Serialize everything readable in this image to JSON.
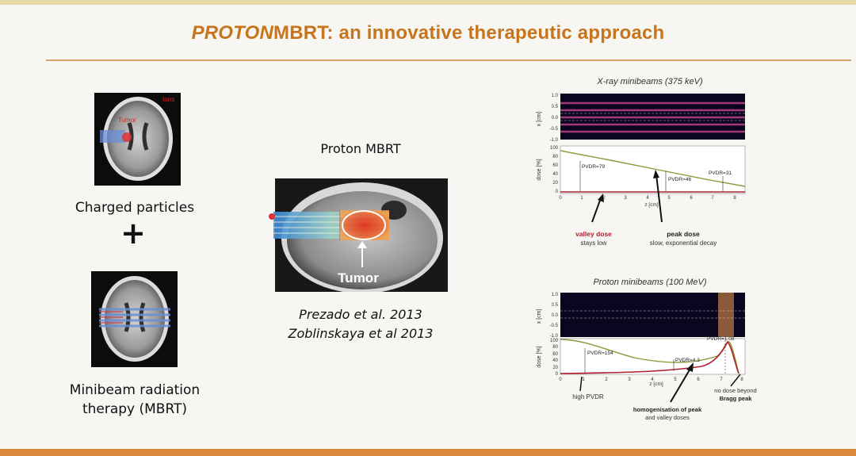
{
  "title": {
    "italic": "PROTON",
    "rest": "MBRT: an innovative therapeutic approach"
  },
  "left": {
    "img1_tag": "Ions",
    "img1_tumor": "Tumor",
    "charged_label": "Charged particles",
    "plus": "+",
    "mbrt_line1": "Minibeam radiation",
    "mbrt_line2": "therapy (MBRT)"
  },
  "center": {
    "heading": "Proton MBRT",
    "tumor_label": "Tumor",
    "ref1": "Prezado et al. 2013",
    "ref2": "Zoblinskaya et al 2013"
  },
  "xray": {
    "title": "X-ray minibeams (375 keV)",
    "ylabel_x": "x [cm]",
    "ylabel_dose": "dose [%]",
    "xlabel": "z [cm]",
    "xticks": [
      "0",
      "1",
      "2",
      "3",
      "4",
      "5",
      "6",
      "7",
      "8"
    ],
    "xticks_top": [
      "1.0",
      "0.5",
      "0.0",
      "-0.5",
      "-1.0"
    ],
    "dose_ticks": [
      "100",
      "80",
      "60",
      "40",
      "20",
      "0"
    ],
    "pvdr1": "PVDR=79",
    "pvdr2": "PVDR=46",
    "pvdr3": "PVDR=31",
    "valley_a": "valley dose",
    "valley_b": "stays low",
    "peak_a": "peak dose",
    "peak_b": "slow, exponential decay"
  },
  "proton": {
    "title": "Proton minibeams (100 MeV)",
    "ylabel_x": "x [cm]",
    "ylabel_dose": "dose [%]",
    "xlabel": "z [cm]",
    "xticks": [
      "0",
      "1",
      "2",
      "3",
      "4",
      "5",
      "6",
      "7",
      "8"
    ],
    "xticks_top": [
      "1.0",
      "0.5",
      "0.0",
      "-0.5",
      "-1.0"
    ],
    "dose_ticks": [
      "100",
      "80",
      "60",
      "40",
      "20",
      "0"
    ],
    "pvdr1": "PVDR=154",
    "pvdr2": "PVDR=4.3",
    "pvdr3": "PVDR=1.08",
    "high": "high PVDR",
    "homog_a": "homogenisation of peak",
    "homog_b": "and valley doses",
    "homog_peak": "peak",
    "homog_valley": "valley",
    "nodose_a": "no dose beyond",
    "nodose_b": "Bragg peak"
  },
  "colors": {
    "title": "#c8741a",
    "rule": "#d6a36a",
    "band": "#d88a3a",
    "valley": "#b0202c",
    "peak": "#8a9a3a"
  }
}
